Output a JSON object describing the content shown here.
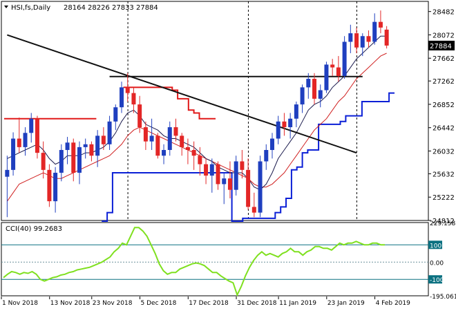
{
  "header": {
    "symbol": "HSI,fs,Daily",
    "ohlc": "28164 28226 27833 27884"
  },
  "cci": {
    "label": "CCI(40) 99.2683"
  },
  "colors": {
    "bull": "#1f3fbf",
    "bear": "#e32626",
    "ma_fast": "#1a1a4d",
    "ma_slow": "#d02020",
    "trend": "#101010",
    "channel_up": "#0a1fd6",
    "channel_down": "#e01818",
    "cci_line": "#7fe01f",
    "grid": "#0a7080"
  },
  "chart_data": [
    {
      "type": "candlestick",
      "title": "HSI,fs,Daily",
      "ylim": [
        24812,
        28660
      ],
      "y_ticks": [
        "28482",
        "28072",
        "27662",
        "27262",
        "26852",
        "26442",
        "26032",
        "25632",
        "25222",
        "24812"
      ],
      "x_ticks": [
        "1 Nov 2018",
        "13 Nov 2018",
        "23 Nov 2018",
        "5 Dec 2018",
        "17 Dec 2018",
        "31 Dec 2018",
        "11 Jan 2019",
        "23 Jan 2019",
        "4 Feb 2019"
      ],
      "last_price_label": "27884",
      "candles": [
        [
          25580,
          25950,
          24870,
          25700
        ],
        [
          25700,
          26360,
          25600,
          26250
        ],
        [
          26250,
          26620,
          26000,
          26100
        ],
        [
          26100,
          26450,
          25950,
          26350
        ],
        [
          26350,
          26700,
          26180,
          26600
        ],
        [
          26600,
          26650,
          25900,
          26000
        ],
        [
          26000,
          26200,
          25550,
          25700
        ],
        [
          25700,
          25800,
          25050,
          25150
        ],
        [
          25150,
          25750,
          24950,
          25650
        ],
        [
          25650,
          26150,
          25500,
          26050
        ],
        [
          26050,
          26280,
          25800,
          26180
        ],
        [
          26180,
          26250,
          25500,
          25650
        ],
        [
          25650,
          26200,
          25450,
          26100
        ],
        [
          26100,
          26250,
          25900,
          26150
        ],
        [
          26150,
          26200,
          25850,
          25950
        ],
        [
          25950,
          26400,
          25750,
          26300
        ],
        [
          26300,
          26450,
          26050,
          26150
        ],
        [
          26150,
          26650,
          26050,
          26550
        ],
        [
          26550,
          26850,
          26400,
          26800
        ],
        [
          26800,
          27250,
          26700,
          27150
        ],
        [
          27150,
          27400,
          26900,
          27050
        ],
        [
          27050,
          27150,
          26700,
          26850
        ],
        [
          26850,
          27000,
          26350,
          26450
        ],
        [
          26450,
          26550,
          26050,
          26200
        ],
        [
          26200,
          26600,
          26050,
          26300
        ],
        [
          26300,
          26350,
          25900,
          25950
        ],
        [
          25950,
          26150,
          25800,
          26050
        ],
        [
          26050,
          26550,
          25950,
          26450
        ],
        [
          26450,
          26600,
          26200,
          26300
        ],
        [
          26300,
          26350,
          25950,
          26100
        ],
        [
          26100,
          26250,
          25800,
          26050
        ],
        [
          26050,
          26200,
          25700,
          25950
        ],
        [
          25950,
          26100,
          25600,
          25800
        ],
        [
          25800,
          25900,
          25450,
          25600
        ],
        [
          25600,
          25900,
          25300,
          25800
        ],
        [
          25800,
          25850,
          25350,
          25450
        ],
        [
          25450,
          25650,
          25100,
          25550
        ],
        [
          25550,
          25850,
          25200,
          25350
        ],
        [
          25350,
          25950,
          25250,
          25850
        ],
        [
          25850,
          26050,
          25550,
          25700
        ],
        [
          25700,
          25900,
          25000,
          25050
        ],
        [
          25050,
          25300,
          24870,
          24950
        ],
        [
          24950,
          25950,
          24870,
          25850
        ],
        [
          25850,
          26150,
          25700,
          26050
        ],
        [
          26050,
          26350,
          25900,
          26250
        ],
        [
          26250,
          26650,
          26150,
          26550
        ],
        [
          26550,
          26700,
          26300,
          26450
        ],
        [
          26450,
          26700,
          26250,
          26600
        ],
        [
          26600,
          26900,
          26450,
          26850
        ],
        [
          26850,
          27200,
          26700,
          27150
        ],
        [
          27150,
          27400,
          26950,
          27300
        ],
        [
          27300,
          27400,
          26850,
          26950
        ],
        [
          26950,
          27200,
          26800,
          27100
        ],
        [
          27100,
          27600,
          27050,
          27550
        ],
        [
          27550,
          27650,
          27350,
          27500
        ],
        [
          27500,
          27700,
          27250,
          27350
        ],
        [
          27350,
          28050,
          27300,
          27950
        ],
        [
          27950,
          28250,
          27750,
          28100
        ],
        [
          28100,
          28200,
          27750,
          27850
        ],
        [
          27850,
          28100,
          27700,
          28050
        ],
        [
          28050,
          28150,
          27850,
          27950
        ],
        [
          27950,
          28450,
          27900,
          28300
        ],
        [
          28300,
          28500,
          28100,
          28200
        ],
        [
          28164,
          28226,
          27833,
          27884
        ]
      ],
      "series": [
        {
          "values": [
            25900,
            25950,
            26000,
            26050,
            26100,
            26150,
            26050,
            25900,
            25800,
            25850,
            25950,
            25950,
            25950,
            26000,
            26000,
            26050,
            26100,
            26200,
            26350,
            26550,
            26700,
            26750,
            26650,
            26500,
            26450,
            26400,
            26300,
            26250,
            26250,
            26200,
            26150,
            26100,
            26000,
            25900,
            25850,
            25750,
            25700,
            25650,
            25650,
            25650,
            25550,
            25400,
            25350,
            25450,
            25650,
            25900,
            26050,
            26200,
            26350,
            26550,
            26750,
            26850,
            26900,
            27000,
            27150,
            27250,
            27350,
            27500,
            27650,
            27750,
            27850,
            27950,
            28050,
            28050
          ]
        },
        {
          "values": [
            25150,
            25300,
            25450,
            25500,
            25550,
            25600,
            25650,
            25600,
            25550,
            25550,
            25600,
            25650,
            25700,
            25750,
            25800,
            25850,
            25900,
            25950,
            26050,
            26150,
            26300,
            26400,
            26450,
            26400,
            26350,
            26300,
            26250,
            26200,
            26150,
            26100,
            26050,
            26000,
            25950,
            25900,
            25850,
            25800,
            25750,
            25700,
            25650,
            25600,
            25550,
            25450,
            25400,
            25400,
            25450,
            25550,
            25650,
            25800,
            25950,
            26100,
            26250,
            26400,
            26500,
            26600,
            26750,
            26900,
            27000,
            27150,
            27300,
            27400,
            27500,
            27600,
            27700,
            27750
          ]
        },
        {
          "values": [
            null,
            null,
            null,
            null,
            null,
            null,
            null,
            null,
            null,
            null,
            null,
            null,
            null,
            null,
            null,
            null,
            null,
            null,
            24800,
            24950,
            25650,
            25650,
            25650,
            25650,
            25650,
            25650,
            25650,
            25650,
            25650,
            25650,
            25650,
            25650,
            25650,
            25650,
            25650,
            25650,
            25650,
            25650,
            25650,
            25650,
            25650,
            25650,
            24800,
            24800,
            24850,
            24850,
            24850,
            24850,
            24850,
            24850,
            24950,
            25050,
            25200,
            25700,
            25750,
            26000,
            26050,
            26050,
            26500,
            26500,
            26500,
            26500,
            26550,
            26650,
            26650,
            26650,
            26900,
            26900,
            26900,
            26900,
            26900,
            27050,
            27050
          ]
        },
        {
          "values": [
            26600,
            26600,
            26600,
            26600,
            26600,
            26600,
            26600,
            26600,
            26600,
            26600,
            26600,
            26600,
            26600,
            26600,
            26600,
            26600,
            26600,
            26600,
            null,
            null,
            null,
            null,
            27150,
            27150,
            27150,
            27150,
            27150,
            27150,
            27150,
            27150,
            27150,
            27100,
            26950,
            26950,
            26750,
            26700,
            26600,
            26600,
            26600,
            26600
          ]
        }
      ],
      "trendlines": [
        {
          "from": [
            0,
            28070
          ],
          "to": [
            58,
            26000
          ]
        },
        {
          "from": [
            17,
            27340
          ],
          "to": [
            59,
            27340
          ]
        }
      ]
    },
    {
      "type": "line",
      "title": "CCI(40) 99.2683",
      "y_ticks": [
        "229.1588",
        "100",
        "0.00",
        "-100",
        "-195.061"
      ],
      "ylim": [
        -195.061,
        229.1588
      ],
      "series": [
        {
          "name": "CCI(40)",
          "values": [
            -90,
            -70,
            -55,
            -60,
            -70,
            -60,
            -65,
            -55,
            -70,
            -100,
            -110,
            -100,
            -90,
            -85,
            -75,
            -70,
            -60,
            -55,
            -45,
            -40,
            -35,
            -30,
            -20,
            -10,
            0,
            15,
            30,
            60,
            80,
            110,
            100,
            150,
            200,
            200,
            180,
            150,
            100,
            50,
            -10,
            -50,
            -70,
            -60,
            -60,
            -40,
            -30,
            -20,
            -10,
            -5,
            -10,
            -20,
            -40,
            -60,
            -60,
            -80,
            -95,
            -110,
            -120,
            -190,
            -140,
            -80,
            -30,
            10,
            40,
            60,
            40,
            50,
            40,
            30,
            50,
            60,
            80,
            60,
            60,
            40,
            60,
            70,
            90,
            90,
            80,
            80,
            70,
            90,
            110,
            100,
            110,
            110,
            120,
            110,
            100,
            100,
            110,
            110,
            100,
            100
          ]
        }
      ]
    }
  ]
}
